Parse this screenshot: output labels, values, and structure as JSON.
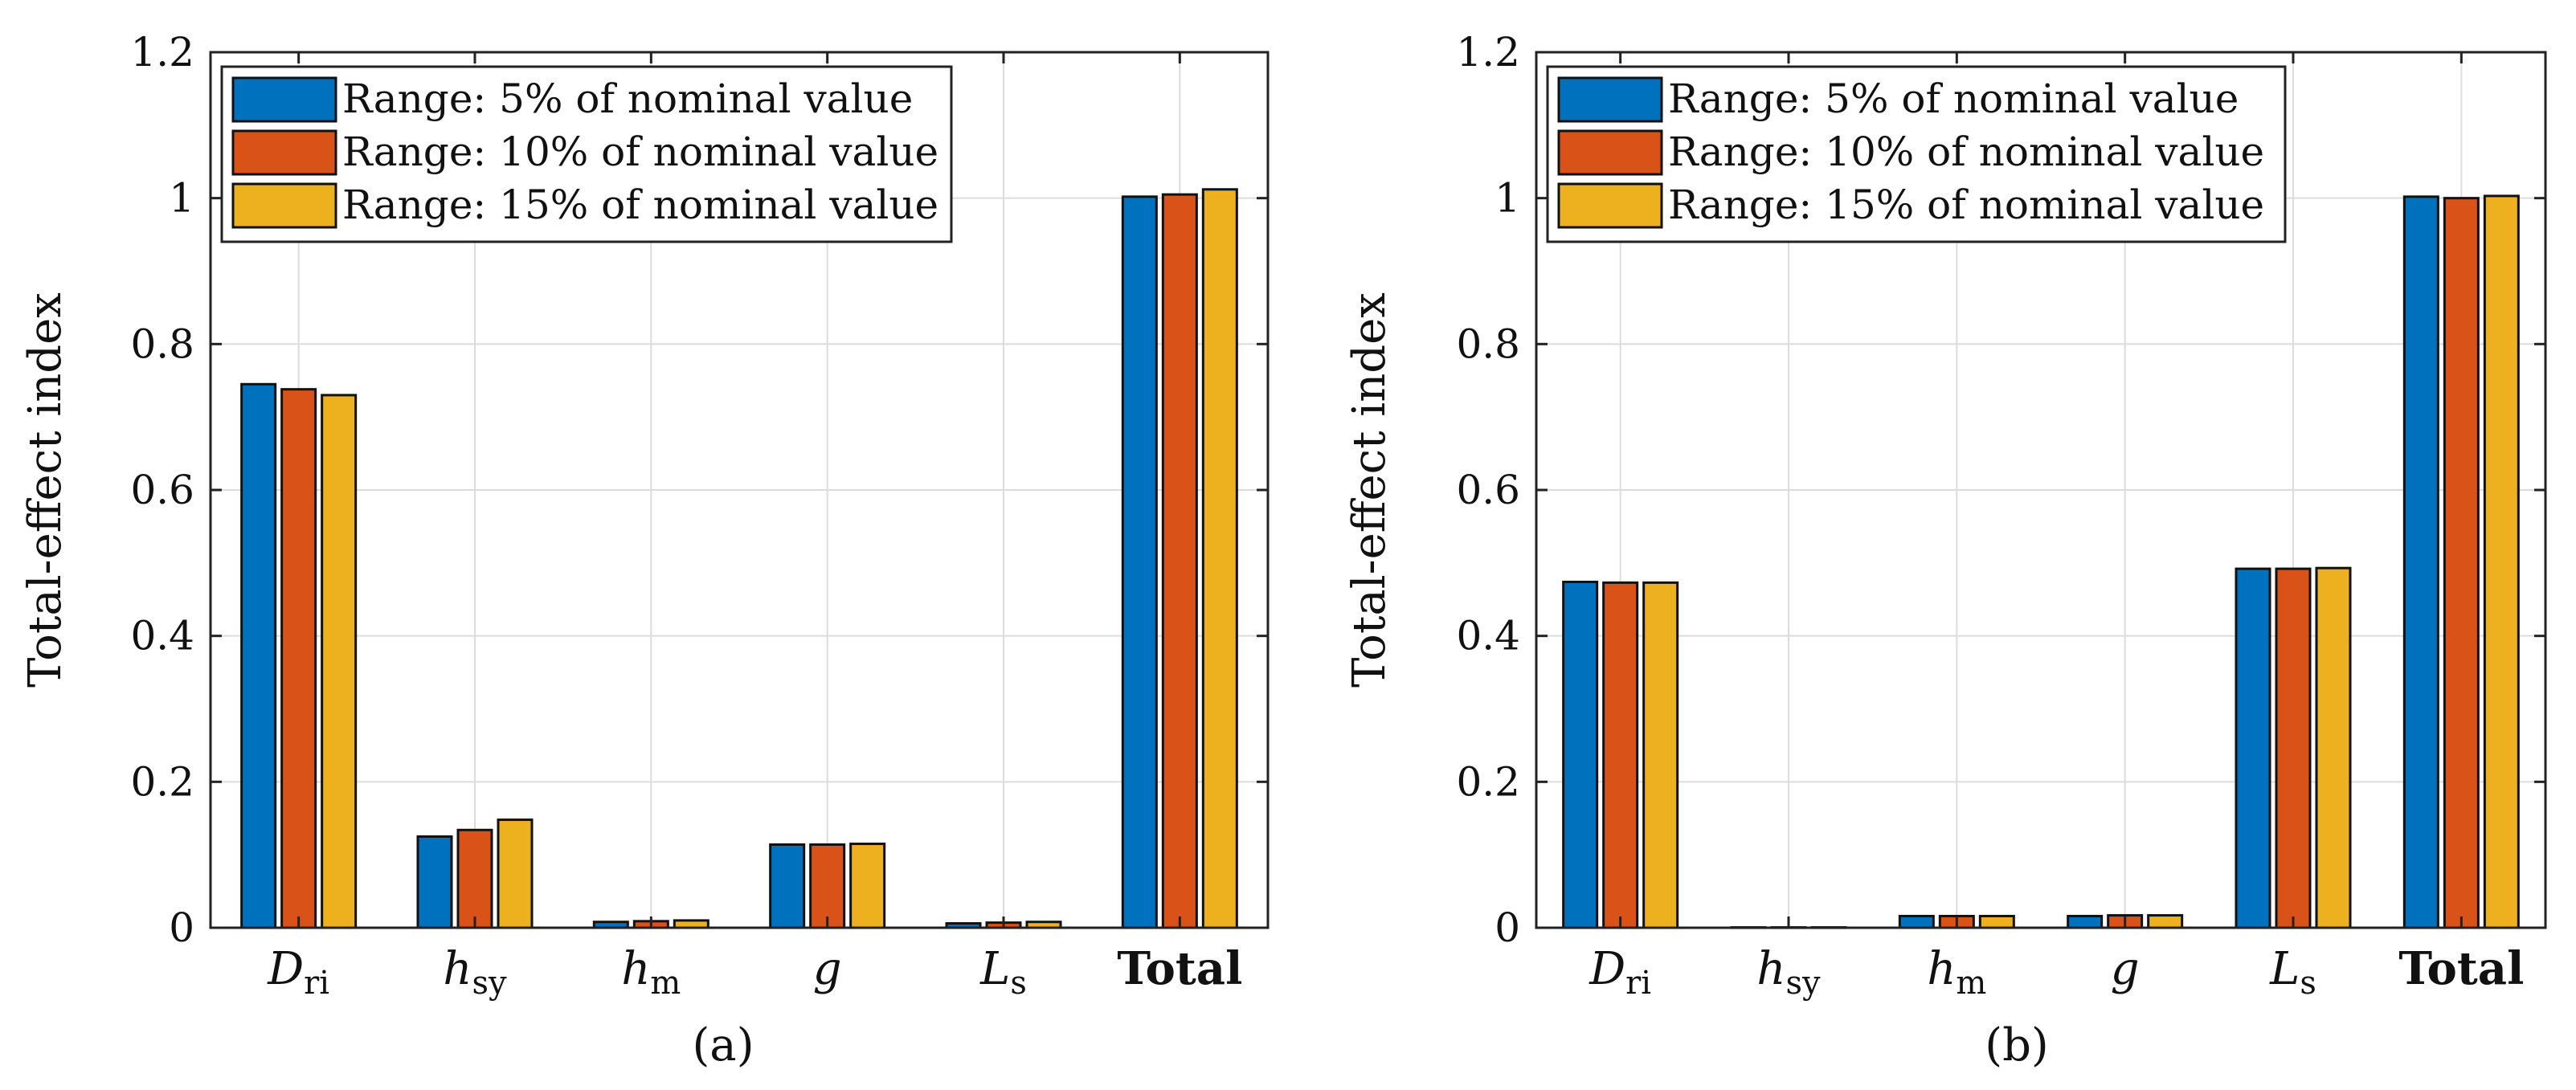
{
  "colors": {
    "series_1": "#0072BD",
    "series_2": "#D95319",
    "series_3": "#EDB120"
  },
  "chart_data": [
    {
      "type": "bar",
      "panel": "a",
      "caption": "(a)",
      "ylabel": "Total-effect index",
      "xlabel": "",
      "ylim": [
        0,
        1.2
      ],
      "yticks": [
        0,
        0.2,
        0.4,
        0.6,
        0.8,
        1,
        1.2
      ],
      "ytick_labels": [
        "0",
        "0.2",
        "0.4",
        "0.6",
        "0.8",
        "1",
        "1.2"
      ],
      "grid": true,
      "legend_position": "top-left",
      "categories": [
        {
          "main": "D",
          "sub": "ri"
        },
        {
          "main": "h",
          "sub": "sy"
        },
        {
          "main": "h",
          "sub": "m"
        },
        {
          "main": "g",
          "sub": ""
        },
        {
          "main": "L",
          "sub": "s"
        },
        {
          "main": "Total",
          "sub": "",
          "bold": true
        }
      ],
      "series": [
        {
          "name": "Range: 5% of nominal value",
          "values": [
            0.745,
            0.125,
            0.008,
            0.114,
            0.006,
            1.002
          ]
        },
        {
          "name": "Range: 10% of nominal value",
          "values": [
            0.738,
            0.134,
            0.009,
            0.114,
            0.007,
            1.005
          ]
        },
        {
          "name": "Range: 15% of nominal value",
          "values": [
            0.73,
            0.148,
            0.01,
            0.115,
            0.008,
            1.012
          ]
        }
      ]
    },
    {
      "type": "bar",
      "panel": "b",
      "caption": "(b)",
      "ylabel": "Total-effect index",
      "xlabel": "",
      "ylim": [
        0,
        1.2
      ],
      "yticks": [
        0,
        0.2,
        0.4,
        0.6,
        0.8,
        1,
        1.2
      ],
      "ytick_labels": [
        "0",
        "0.2",
        "0.4",
        "0.6",
        "0.8",
        "1",
        "1.2"
      ],
      "grid": true,
      "legend_position": "top-left",
      "categories": [
        {
          "main": "D",
          "sub": "ri"
        },
        {
          "main": "h",
          "sub": "sy"
        },
        {
          "main": "h",
          "sub": "m"
        },
        {
          "main": "g",
          "sub": ""
        },
        {
          "main": "L",
          "sub": "s"
        },
        {
          "main": "Total",
          "sub": "",
          "bold": true
        }
      ],
      "series": [
        {
          "name": "Range: 5% of nominal value",
          "values": [
            0.474,
            0.0005,
            0.016,
            0.016,
            0.492,
            1.002
          ]
        },
        {
          "name": "Range: 10% of nominal value",
          "values": [
            0.473,
            0.0005,
            0.016,
            0.017,
            0.492,
            1.0
          ]
        },
        {
          "name": "Range: 15% of nominal value",
          "values": [
            0.473,
            0.0005,
            0.016,
            0.017,
            0.493,
            1.003
          ]
        }
      ]
    }
  ]
}
